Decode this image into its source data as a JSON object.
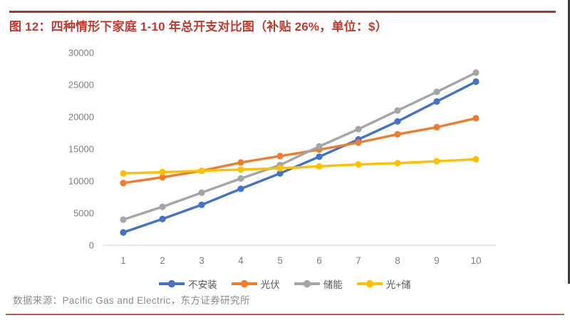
{
  "header": {
    "title": "图 12：四种情形下家庭 1-10 年总开支对比图（补贴 26%，单位：$）"
  },
  "footer": {
    "source": "数据来源：Pacific Gas and Electric，东方证券研究所"
  },
  "colors": {
    "title_red": "#C13A2F",
    "top_rule": "#A13A2F",
    "bottom_rule": "#BC584C",
    "right_border": "#3D3D3D",
    "axis_line": "#D9D9D9",
    "tick_label": "#7F7F7F",
    "legend_text": "#595959"
  },
  "chart_data": {
    "type": "line",
    "title": "四种情形下家庭 1-10 年总开支对比图（补贴 26%，单位：$）",
    "x": [
      1,
      2,
      3,
      4,
      5,
      6,
      7,
      8,
      9,
      10
    ],
    "xlabel": "",
    "ylabel": "",
    "ylim": [
      0,
      30000
    ],
    "ytick_step": 5000,
    "yticks": [
      0,
      5000,
      10000,
      15000,
      20000,
      25000,
      30000
    ],
    "grid": false,
    "legend_position": "bottom",
    "marker": "circle",
    "series": [
      {
        "name": "不安装",
        "color": "#4472C4",
        "values": [
          2000,
          4100,
          6300,
          8800,
          11200,
          13800,
          16500,
          19300,
          22400,
          25500
        ]
      },
      {
        "name": "光伏",
        "color": "#ED7D31",
        "values": [
          9700,
          10600,
          11600,
          12900,
          13900,
          14900,
          16000,
          17300,
          18400,
          19800
        ]
      },
      {
        "name": "储能",
        "color": "#A5A5A5",
        "values": [
          4000,
          6000,
          8200,
          10400,
          12500,
          15400,
          18100,
          21000,
          23900,
          26900
        ]
      },
      {
        "name": "光+储",
        "color": "#FFC000",
        "values": [
          11200,
          11400,
          11600,
          11800,
          12000,
          12300,
          12600,
          12800,
          13100,
          13400
        ]
      }
    ]
  }
}
